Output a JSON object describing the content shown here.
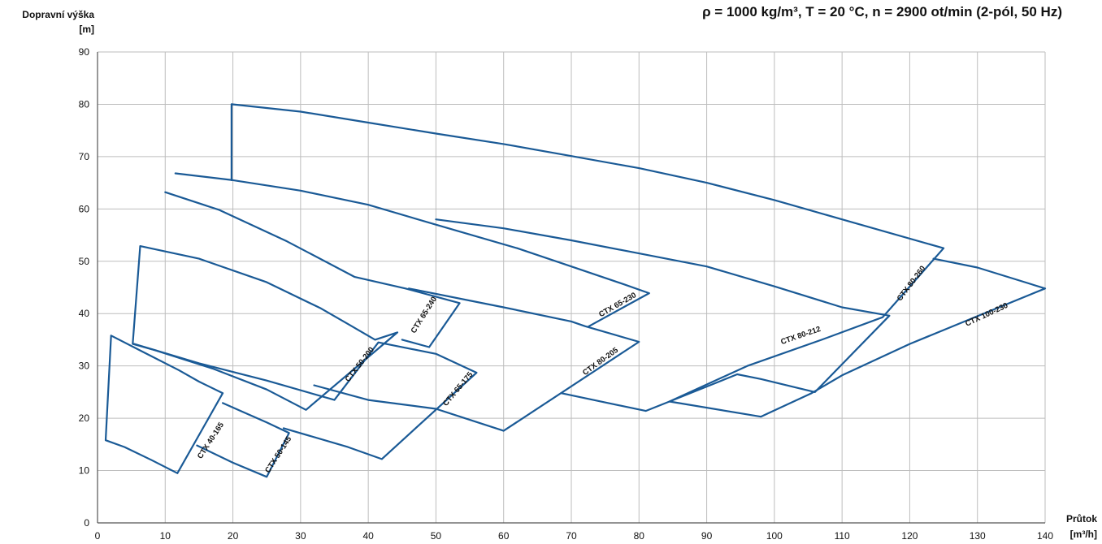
{
  "chart_data": {
    "type": "line",
    "title": "ρ = 1000 kg/m³, T = 20 °C, n = 2900 ot/min (2-pól, 50 Hz)",
    "ylabel_line1": "Dopravní výška",
    "ylabel_line2": "[m]",
    "xlabel_line1": "Průtok",
    "xlabel_line2": "[m³/h]",
    "xlim": [
      0,
      140
    ],
    "ylim": [
      0,
      90
    ],
    "x_ticks": [
      0,
      10,
      20,
      30,
      40,
      50,
      60,
      70,
      80,
      90,
      100,
      110,
      120,
      130,
      140
    ],
    "y_ticks": [
      0,
      10,
      20,
      30,
      40,
      50,
      60,
      70,
      80,
      90
    ],
    "grid": true,
    "line_color": "#1a5a96",
    "series": [
      {
        "name": "CTX 40-165",
        "label_at": [
          17,
          15.5
        ],
        "label_angle": -57,
        "points": [
          [
            2,
            35.8
          ],
          [
            7,
            32.5
          ],
          [
            12,
            29.2
          ],
          [
            15,
            27
          ],
          [
            18.5,
            24.8
          ],
          [
            11.8,
            9.5
          ],
          [
            8,
            12
          ],
          [
            4,
            14.5
          ],
          [
            1.2,
            15.8
          ],
          [
            2,
            35.8
          ]
        ]
      },
      {
        "name": "CTX 50-145",
        "label_at": [
          27,
          12.8
        ],
        "label_angle": -57,
        "points": [
          [
            18.5,
            22.9
          ],
          [
            25,
            19.2
          ],
          [
            28.3,
            17.2
          ],
          [
            25,
            8.8
          ],
          [
            20,
            11.5
          ],
          [
            14.7,
            14.8
          ]
        ]
      },
      {
        "name": "CTX 50-200",
        "label_at": [
          39,
          30
        ],
        "label_angle": -52,
        "points": [
          [
            6.3,
            52.9
          ],
          [
            15,
            50.5
          ],
          [
            25,
            46
          ],
          [
            33,
            41
          ],
          [
            37,
            38
          ],
          [
            41,
            35
          ],
          [
            44.3,
            36.4
          ],
          [
            30.8,
            21.6
          ],
          [
            25,
            25.5
          ],
          [
            17,
            29.5
          ],
          [
            8.5,
            33
          ],
          [
            5.2,
            34.2
          ],
          [
            6.3,
            52.9
          ]
        ]
      },
      {
        "name": "CTX 65-240",
        "label_at": [
          48.5,
          39.5
        ],
        "label_angle": -58,
        "points": [
          [
            10,
            63.2
          ],
          [
            18,
            59.8
          ],
          [
            28,
            53.8
          ],
          [
            38,
            47
          ],
          [
            45.5,
            44.8
          ],
          [
            53.5,
            42
          ],
          [
            49,
            33.6
          ],
          [
            45,
            35
          ]
        ]
      },
      {
        "name": "CTX 65-175",
        "label_at": [
          53.5,
          25.3
        ],
        "label_angle": -50,
        "points": [
          [
            5.4,
            34.2
          ],
          [
            15,
            30.5
          ],
          [
            25,
            27.2
          ],
          [
            35,
            23.5
          ],
          [
            41.5,
            34.5
          ],
          [
            50,
            32.3
          ],
          [
            56,
            28.7
          ],
          [
            42,
            12.2
          ],
          [
            37,
            14.5
          ],
          [
            27.5,
            18.1
          ]
        ]
      },
      {
        "name": "CTX 65-230",
        "label_at": [
          77,
          41.3
        ],
        "label_angle": -30,
        "points": [
          [
            11.5,
            66.8
          ],
          [
            20,
            65.5
          ],
          [
            30,
            63.5
          ],
          [
            40,
            60.8
          ],
          [
            50,
            57
          ],
          [
            62,
            52.5
          ],
          [
            70,
            49
          ],
          [
            78,
            45.5
          ],
          [
            81.5,
            43.9
          ],
          [
            72.5,
            37.5
          ]
        ]
      },
      {
        "name": "CTX 80-205",
        "label_at": [
          74.5,
          30.5
        ],
        "label_angle": -36,
        "points": [
          [
            46,
            44.8
          ],
          [
            60,
            41.2
          ],
          [
            70,
            38.5
          ],
          [
            72,
            37.6
          ],
          [
            80,
            34.6
          ],
          [
            60,
            17.6
          ],
          [
            50,
            21.8
          ],
          [
            40,
            23.5
          ],
          [
            32,
            26.3
          ]
        ]
      },
      {
        "name": "CTX 80-212",
        "label_at": [
          104,
          35.4
        ],
        "label_angle": -19,
        "points": [
          [
            50,
            58
          ],
          [
            60,
            56.3
          ],
          [
            70,
            54
          ],
          [
            80,
            51.5
          ],
          [
            90,
            49
          ],
          [
            100,
            45.2
          ],
          [
            110,
            41.2
          ],
          [
            117,
            39.6
          ],
          [
            106,
            25
          ],
          [
            98,
            27.5
          ],
          [
            94.5,
            28.4
          ],
          [
            84.5,
            23.2
          ],
          [
            81,
            21.4
          ],
          [
            68.5,
            24.8
          ]
        ]
      },
      {
        "name": "CTX 80-260",
        "label_at": [
          120.5,
          45.5
        ],
        "label_angle": -53,
        "points": [
          [
            19.8,
            65.5
          ],
          [
            19.8,
            80
          ],
          [
            30,
            78.6
          ],
          [
            40,
            76.5
          ],
          [
            50,
            74.4
          ],
          [
            60,
            72.4
          ],
          [
            70,
            70.1
          ],
          [
            80,
            67.8
          ],
          [
            90,
            65
          ],
          [
            100,
            61.7
          ],
          [
            110,
            58
          ],
          [
            125,
            52.5
          ],
          [
            116,
            39.3
          ],
          [
            107,
            35
          ],
          [
            96,
            30
          ],
          [
            84.5,
            23.2
          ]
        ]
      },
      {
        "name": "CTX 100-230",
        "label_at": [
          131.5,
          39.4
        ],
        "label_angle": -25,
        "points": [
          [
            123.5,
            50.5
          ],
          [
            130,
            48.8
          ],
          [
            140,
            44.8
          ],
          [
            130,
            39.5
          ],
          [
            120,
            34.2
          ],
          [
            110,
            28.2
          ],
          [
            105.5,
            24.8
          ],
          [
            98,
            20.3
          ],
          [
            84.5,
            23.2
          ]
        ]
      }
    ]
  }
}
